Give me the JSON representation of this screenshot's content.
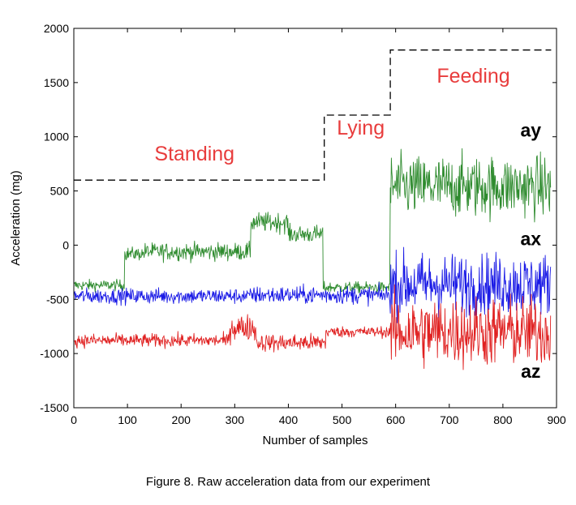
{
  "chart_data": {
    "type": "line",
    "title": "",
    "xlabel": "Number of samples",
    "ylabel": "Acceleration (mg)",
    "xlim": [
      0,
      900
    ],
    "ylim": [
      -1500,
      2000
    ],
    "xticks": [
      0,
      100,
      200,
      300,
      400,
      500,
      600,
      700,
      800,
      900
    ],
    "yticks": [
      -1500,
      -1000,
      -500,
      0,
      500,
      1000,
      1500,
      2000
    ],
    "grid": false,
    "phase_labels": [
      {
        "text": "Standing",
        "x": 225,
        "y": 780
      },
      {
        "text": "Lying",
        "x": 535,
        "y": 1020
      },
      {
        "text": "Feeding",
        "x": 745,
        "y": 1500
      }
    ],
    "phase_step": {
      "x": [
        0,
        467,
        467,
        590,
        590,
        890
      ],
      "y": [
        600,
        600,
        1200,
        1200,
        1800,
        1800
      ]
    },
    "series": [
      {
        "name": "ay",
        "color": "#2e8b2e",
        "label_at": {
          "x": 852,
          "y": 1000
        },
        "segments": [
          {
            "x0": 0,
            "x1": 95,
            "mean": -370,
            "noise": 25
          },
          {
            "x0": 95,
            "x1": 130,
            "mean": -80,
            "noise": 30
          },
          {
            "x0": 130,
            "x1": 330,
            "mean": -60,
            "noise": 40
          },
          {
            "x0": 330,
            "x1": 400,
            "mean": 210,
            "noise": 45
          },
          {
            "x0": 400,
            "x1": 465,
            "mean": 100,
            "noise": 40
          },
          {
            "x0": 465,
            "x1": 590,
            "mean": -390,
            "noise": 25
          },
          {
            "x0": 590,
            "x1": 890,
            "mean": 540,
            "noise": 140
          }
        ]
      },
      {
        "name": "ax",
        "color": "#1a1ae6",
        "label_at": {
          "x": 852,
          "y": 0
        },
        "segments": [
          {
            "x0": 0,
            "x1": 330,
            "mean": -470,
            "noise": 35
          },
          {
            "x0": 330,
            "x1": 590,
            "mean": -460,
            "noise": 40
          },
          {
            "x0": 590,
            "x1": 890,
            "mean": -360,
            "noise": 140
          }
        ]
      },
      {
        "name": "az",
        "color": "#e02020",
        "label_at": {
          "x": 852,
          "y": -1225
        },
        "segments": [
          {
            "x0": 0,
            "x1": 290,
            "mean": -880,
            "noise": 30
          },
          {
            "x0": 290,
            "x1": 340,
            "mean": -760,
            "noise": 60
          },
          {
            "x0": 340,
            "x1": 470,
            "mean": -900,
            "noise": 40
          },
          {
            "x0": 470,
            "x1": 590,
            "mean": -800,
            "noise": 25
          },
          {
            "x0": 590,
            "x1": 890,
            "mean": -800,
            "noise": 160
          }
        ]
      }
    ],
    "phase_label_color": "#e83c3c"
  },
  "caption": "Figure 8. Raw acceleration data from our experiment"
}
